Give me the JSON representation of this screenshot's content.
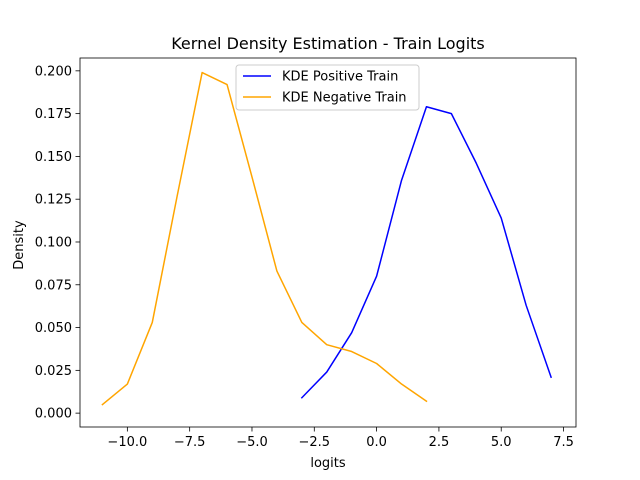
{
  "chart_data": {
    "type": "line",
    "title": "Kernel Density Estimation - Train Logits",
    "xlabel": "logits",
    "ylabel": "Density",
    "xlim": [
      -11.9,
      8.0
    ],
    "ylim": [
      -0.0081,
      0.2075
    ],
    "xticks": [
      {
        "value": -10.0,
        "label": "−10.0"
      },
      {
        "value": -7.5,
        "label": "−7.5"
      },
      {
        "value": -5.0,
        "label": "−5.0"
      },
      {
        "value": -2.5,
        "label": "−2.5"
      },
      {
        "value": 0.0,
        "label": "0.0"
      },
      {
        "value": 2.5,
        "label": "2.5"
      },
      {
        "value": 5.0,
        "label": "5.0"
      },
      {
        "value": 7.5,
        "label": "7.5"
      }
    ],
    "yticks": [
      {
        "value": 0.0,
        "label": "0.000"
      },
      {
        "value": 0.025,
        "label": "0.025"
      },
      {
        "value": 0.05,
        "label": "0.050"
      },
      {
        "value": 0.075,
        "label": "0.075"
      },
      {
        "value": 0.1,
        "label": "0.100"
      },
      {
        "value": 0.125,
        "label": "0.125"
      },
      {
        "value": 0.15,
        "label": "0.150"
      },
      {
        "value": 0.175,
        "label": "0.175"
      },
      {
        "value": 0.2,
        "label": "0.200"
      }
    ],
    "grid": false,
    "legend_position": "upper center",
    "series": [
      {
        "name": "KDE Positive Train",
        "color": "#0000ff",
        "x": [
          -3,
          -2,
          -1,
          0,
          1,
          2,
          3,
          4,
          5,
          6,
          7
        ],
        "y": [
          0.009,
          0.024,
          0.047,
          0.08,
          0.136,
          0.179,
          0.175,
          0.146,
          0.114,
          0.063,
          0.021
        ]
      },
      {
        "name": "KDE Negative Train",
        "color": "#ffa500",
        "x": [
          -11,
          -10,
          -9,
          -8,
          -7,
          -6,
          -5,
          -4,
          -3,
          -2,
          -1,
          0,
          1,
          2
        ],
        "y": [
          0.005,
          0.017,
          0.053,
          0.127,
          0.199,
          0.192,
          0.138,
          0.083,
          0.053,
          0.04,
          0.036,
          0.029,
          0.017,
          0.007
        ]
      }
    ]
  }
}
